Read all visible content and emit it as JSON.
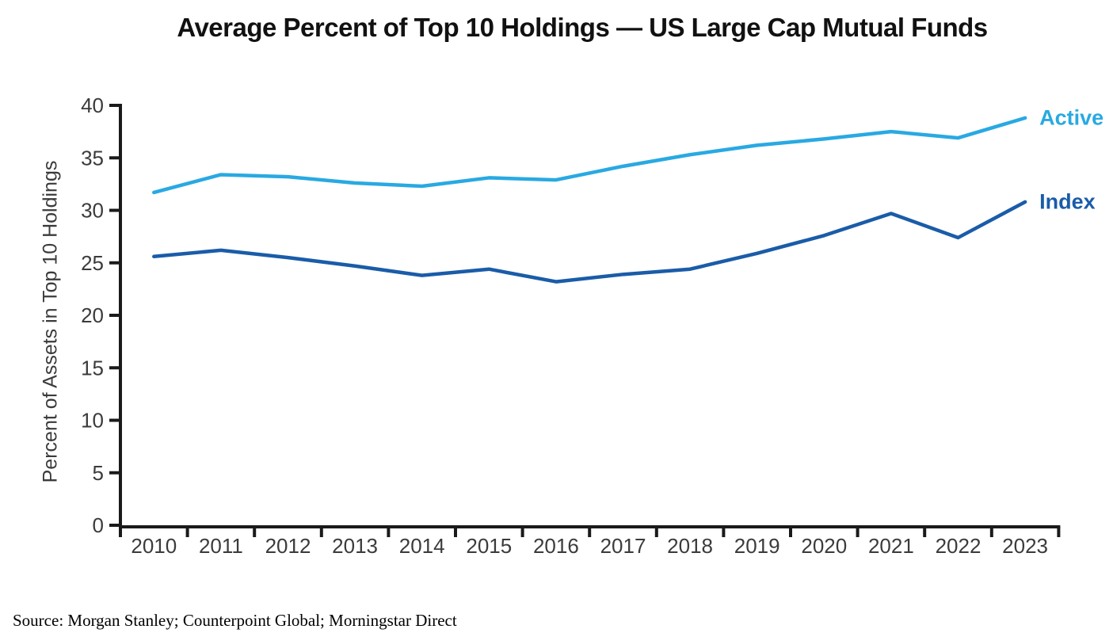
{
  "chart_data": {
    "type": "line",
    "title": "Average Percent of Top 10 Holdings — US Large Cap Mutual Funds",
    "xlabel": "",
    "ylabel": "Percent of Assets in Top 10 Holdings",
    "source": "Source: Morgan Stanley; Counterpoint Global; Morningstar Direct",
    "categories": [
      "2010",
      "2011",
      "2012",
      "2013",
      "2014",
      "2015",
      "2016",
      "2017",
      "2018",
      "2019",
      "2020",
      "2021",
      "2022",
      "2023"
    ],
    "ylim": [
      0,
      40
    ],
    "yticks": [
      0,
      5,
      10,
      15,
      20,
      25,
      30,
      35,
      40
    ],
    "grid": false,
    "legend_position": "right-end-of-lines",
    "axis_color": "#1a1a1a",
    "tick_label_color": "#3b3b3b",
    "series": [
      {
        "name": "Active",
        "color": "#29A9E2",
        "values": [
          31.7,
          33.4,
          33.2,
          32.6,
          32.3,
          33.1,
          32.9,
          34.2,
          35.3,
          36.2,
          36.8,
          37.5,
          36.9,
          38.8
        ]
      },
      {
        "name": "Index",
        "color": "#1A5CA8",
        "values": [
          25.6,
          26.2,
          25.5,
          24.7,
          23.8,
          24.4,
          23.2,
          23.9,
          24.4,
          25.9,
          27.6,
          29.7,
          27.4,
          30.8
        ]
      }
    ]
  }
}
